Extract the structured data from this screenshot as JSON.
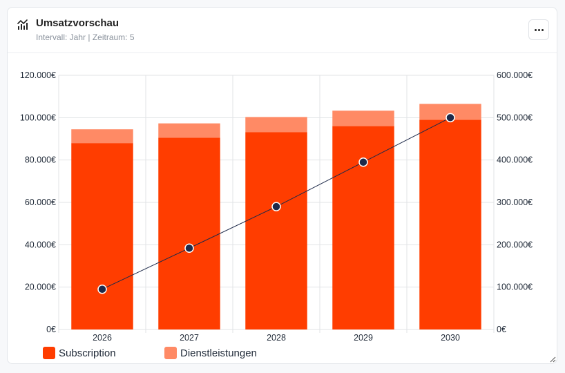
{
  "card": {
    "title": "Umsatzvorschau",
    "subtitle": "Intervall: Jahr | Zeitraum: 5",
    "header_icon": "chart-icon",
    "menu_icon": "more-horizontal-icon"
  },
  "chart_data": {
    "type": "bar",
    "stacked": true,
    "categories": [
      "2026",
      "2027",
      "2028",
      "2029",
      "2030"
    ],
    "series": [
      {
        "name": "Subscription",
        "type": "bar",
        "axis": "left",
        "color": "#ff3d00",
        "values": [
          88000,
          90500,
          93200,
          96000,
          99000
        ]
      },
      {
        "name": "Dienstleistungen",
        "type": "bar",
        "axis": "left",
        "color": "#ff8a65",
        "values": [
          6500,
          6800,
          7100,
          7300,
          7500
        ]
      },
      {
        "type": "line",
        "axis": "right",
        "color": "#1e2a4a",
        "values": [
          95000,
          192000,
          290000,
          395000,
          500000
        ]
      }
    ],
    "left_axis": {
      "min": 0,
      "max": 120000,
      "ticks": [
        "0€",
        "20.000€",
        "40.000€",
        "60.000€",
        "80.000€",
        "100.000€",
        "120.000€"
      ]
    },
    "right_axis": {
      "min": 0,
      "max": 600000,
      "ticks": [
        "0€",
        "100.000€",
        "200.000€",
        "300.000€",
        "400.000€",
        "500.000€",
        "600.000€"
      ]
    },
    "grid": true,
    "legend": {
      "position": "bottom-left",
      "items": [
        "Subscription",
        "Dienstleistungen"
      ]
    }
  }
}
